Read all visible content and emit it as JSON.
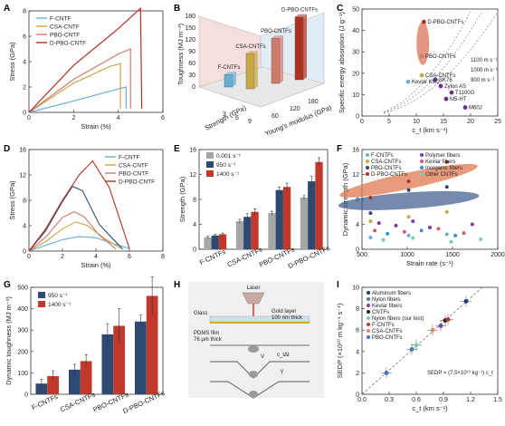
{
  "colors": {
    "f": "#6aaed6",
    "csa": "#c9a84a",
    "pbo": "#d07a6a",
    "dpbo": "#b03020",
    "navy": "#2e4a73",
    "gray": "#a6a6a6",
    "red": "#c0392b"
  },
  "panel_letters": [
    "A",
    "B",
    "C",
    "D",
    "E",
    "F",
    "G",
    "H",
    "I"
  ],
  "chart_data": [
    {
      "id": "A",
      "type": "line",
      "xlabel": "Strain (%)",
      "ylabel": "Stress (GPa)",
      "xlim": [
        0,
        6
      ],
      "ylim": [
        0,
        8
      ],
      "xticks": [
        "0",
        "2",
        "4",
        "6"
      ],
      "yticks": [
        "0",
        "2",
        "4",
        "6",
        "8"
      ],
      "series": [
        {
          "name": "F-CNTF",
          "color": "#6aaed6",
          "x": [
            0,
            2,
            4,
            4.35,
            4.35
          ],
          "y": [
            0,
            0.9,
            1.85,
            2.0,
            0.3
          ]
        },
        {
          "name": "CSA-CNTF",
          "color": "#c9a84a",
          "x": [
            0,
            2,
            3.6,
            4.1,
            4.1
          ],
          "y": [
            0,
            2.3,
            3.6,
            3.85,
            0.3
          ]
        },
        {
          "name": "PBO-CNTF",
          "color": "#d07a6a",
          "x": [
            0,
            2,
            4,
            4.55,
            4.55
          ],
          "y": [
            0,
            2.6,
            4.6,
            5.0,
            0.3
          ]
        },
        {
          "name": "D-PBO-CNTF",
          "color": "#b03020",
          "x": [
            0,
            2,
            4,
            5.0,
            5.05
          ],
          "y": [
            0,
            3.7,
            6.6,
            8.2,
            0.3
          ]
        }
      ]
    },
    {
      "id": "B",
      "type": "bar",
      "ylabel": "Toughness (MJ m⁻³)",
      "xlabel": "Strength (GPa)",
      "zlabel": "Young's modulus (GPa)",
      "zlim": [
        0,
        180
      ],
      "zticks": [
        "0",
        "30",
        "60",
        "90",
        "120",
        "150",
        "180"
      ],
      "strength_ticks": [
        "3",
        "6",
        "9"
      ],
      "modulus_ticks": [
        "60",
        "120",
        "180"
      ],
      "bars": [
        {
          "label": "F-CNTFs",
          "value": 32,
          "color": "#6aaed6"
        },
        {
          "label": "CSA-CNTFs",
          "value": 90,
          "color": "#c9a84a"
        },
        {
          "label": "PBO-CNTFs",
          "value": 115,
          "color": "#d07a6a"
        },
        {
          "label": "D-PBO-CNTFs",
          "value": 160,
          "color": "#b03020"
        }
      ]
    },
    {
      "id": "C",
      "type": "scatter",
      "xlabel": "c_t (km s⁻¹)",
      "ylabel": "Specific energy absorption (J g⁻¹)",
      "xlim": [
        0,
        25
      ],
      "ylim": [
        0,
        50
      ],
      "xticks": [
        "0",
        "5",
        "10",
        "15",
        "20",
        "25"
      ],
      "yticks": [
        "0",
        "10",
        "20",
        "30",
        "40",
        "50"
      ],
      "contours": [
        "1100 m s⁻¹",
        "1000 m s⁻¹",
        "900 m s⁻¹"
      ],
      "points": [
        {
          "label": "D-PBO-CNTFs",
          "x": 11.4,
          "y": 44,
          "color": "#b03020"
        },
        {
          "label": "PBO-CNTFs",
          "x": 11.0,
          "y": 28,
          "color": "#d07a6a"
        },
        {
          "label": "CSA-CNTFs",
          "x": 11.0,
          "y": 19,
          "color": "#c9a84a"
        },
        {
          "label": "Kevlar KM2",
          "x": 8.5,
          "y": 16,
          "color": "#6aaed6"
        },
        {
          "label": "SK76",
          "x": 13.5,
          "y": 17,
          "color": "#6b2d8f"
        },
        {
          "label": "Zylon AS",
          "x": 14.5,
          "y": 14,
          "color": "#6b2d8f"
        },
        {
          "label": "T1100G",
          "x": 16.5,
          "y": 11,
          "color": "#6b2d8f"
        },
        {
          "label": "M5-HT",
          "x": 15.5,
          "y": 8,
          "color": "#6b2d8f"
        },
        {
          "label": "M60J",
          "x": 19,
          "y": 4,
          "color": "#6b2d8f"
        }
      ]
    },
    {
      "id": "D",
      "type": "line",
      "xlabel": "Strain (%)",
      "ylabel": "Stress (GPa)",
      "xlim": [
        0,
        8
      ],
      "ylim": [
        0,
        16
      ],
      "xticks": [
        "0",
        "2",
        "4",
        "6",
        "8"
      ],
      "yticks": [
        "0",
        "4",
        "8",
        "12",
        "16"
      ],
      "series": [
        {
          "name": "F-CNTF",
          "color": "#6aaed6",
          "x": [
            0,
            1,
            2,
            3,
            4,
            5,
            6
          ],
          "y": [
            0,
            0.9,
            1.8,
            2.3,
            2.1,
            1.2,
            0.4
          ]
        },
        {
          "name": "CSA-CNTF",
          "color": "#c9a84a",
          "x": [
            0,
            1,
            2,
            2.8,
            3.5,
            4.5,
            5.5
          ],
          "y": [
            0,
            1.5,
            3.5,
            4.6,
            4.0,
            2.0,
            0.4
          ]
        },
        {
          "name": "PBO-CNTF",
          "color": "#d07a6a",
          "x": [
            0,
            1,
            2,
            2.7,
            3.3,
            4.2,
            5.2
          ],
          "y": [
            0,
            2.2,
            5.3,
            6.2,
            5.4,
            2.5,
            0.3
          ]
        },
        {
          "name": "D-PBO-CNTF",
          "color": "#2e4a73",
          "x": [
            0,
            1,
            2,
            2.6,
            3.2,
            4.2,
            5.6
          ],
          "y": [
            0,
            3.2,
            7.8,
            10.2,
            9.5,
            4.2,
            0.3
          ]
        },
        {
          "name": "D-PBO-CNTF",
          "color": "#b03020",
          "x": [
            0,
            1,
            2,
            3,
            3.8,
            4.8,
            6.0
          ],
          "y": [
            0,
            3.5,
            8.0,
            12.0,
            14.2,
            10.0,
            0.4
          ]
        }
      ]
    },
    {
      "id": "E",
      "type": "bar",
      "ylabel": "Strength (GPa)",
      "ylim": [
        0,
        16
      ],
      "yticks": [
        "0",
        "4",
        "8",
        "12",
        "16"
      ],
      "categories": [
        "F-CNTFs",
        "CSA-CNTFs",
        "PBO-CNTFs",
        "D-PBO-CNTFs"
      ],
      "series": [
        {
          "name": "0.001 s⁻¹",
          "color": "#a6a6a6",
          "values": [
            1.9,
            4.5,
            5.8,
            8.3
          ],
          "err": [
            0.2,
            0.3,
            0.3,
            0.3
          ]
        },
        {
          "name": "950 s⁻¹",
          "color": "#2e4a73",
          "values": [
            2.2,
            5.2,
            9.5,
            10.9
          ],
          "err": [
            0.2,
            0.5,
            0.5,
            0.8
          ]
        },
        {
          "name": "1400 s⁻¹",
          "color": "#c0392b",
          "values": [
            2.4,
            6.0,
            10.0,
            14.0
          ],
          "err": [
            0.2,
            0.5,
            0.6,
            0.7
          ]
        }
      ]
    },
    {
      "id": "F",
      "type": "scatter",
      "xlabel": "Strain rate (s⁻¹)",
      "ylabel": "Dynamic strength (GPa)",
      "xlim": [
        400,
        2000
      ],
      "ylim": [
        0,
        16
      ],
      "xticks": [
        "500",
        "1000",
        "1500",
        "2000"
      ],
      "yticks": [
        "0",
        "4",
        "8",
        "12",
        "16"
      ],
      "legend_left": [
        "F-CNTFs",
        "CSA-CNTFs",
        "PBO-CNTFs",
        "D-PBO-CNTFs"
      ],
      "legend_right": [
        "Polymer fibers",
        "Kevlar fibers",
        "Inorganic fibers",
        "Other CNTFs"
      ],
      "series": [
        {
          "name": "D-PBO-CNTFs",
          "color": "#b03020",
          "x": [
            500,
            950,
            1400
          ],
          "y": [
            8.3,
            10.9,
            14.0
          ]
        },
        {
          "name": "PBO-CNTFs",
          "color": "#2e4a73",
          "x": [
            500,
            950,
            1400
          ],
          "y": [
            5.8,
            9.5,
            10.0
          ]
        },
        {
          "name": "CSA-CNTFs",
          "color": "#c9a84a",
          "x": [
            500,
            950,
            1400
          ],
          "y": [
            4.5,
            5.2,
            6.0
          ]
        },
        {
          "name": "F-CNTFs",
          "color": "#6aaed6",
          "x": [
            500,
            950,
            1400
          ],
          "y": [
            1.9,
            2.2,
            2.4
          ]
        },
        {
          "name": "Polymer fibers",
          "color": "#7b3fa0",
          "x": [
            600,
            800,
            1000,
            1200,
            1700
          ],
          "y": [
            4.2,
            3.8,
            4.5,
            3.5,
            4.0
          ]
        },
        {
          "name": "Kevlar fibers",
          "color": "#c85a8a",
          "x": [
            550,
            900,
            1300,
            1600
          ],
          "y": [
            3.0,
            2.8,
            3.3,
            2.6
          ]
        },
        {
          "name": "Inorganic fibers",
          "color": "#3a8fd0",
          "x": [
            700,
            1100,
            1500
          ],
          "y": [
            2.5,
            3.0,
            2.2
          ]
        },
        {
          "name": "Other CNTFs",
          "color": "#7fc8c0",
          "x": [
            650,
            1000,
            1450,
            1800
          ],
          "y": [
            1.5,
            1.8,
            1.2,
            1.6
          ]
        }
      ]
    },
    {
      "id": "G",
      "type": "bar",
      "ylabel": "Dynamic toughness (MJ m⁻³)",
      "ylim": [
        0,
        500
      ],
      "yticks": [
        "0",
        "100",
        "200",
        "300",
        "400",
        "500"
      ],
      "categories": [
        "F-CNTFs",
        "CSA-CNTFs",
        "PBO-CNTFs",
        "D-PBO-CNTFs"
      ],
      "series": [
        {
          "name": "950 s⁻¹",
          "color": "#2e4a73",
          "values": [
            50,
            115,
            280,
            340
          ],
          "err": [
            20,
            25,
            50,
            30
          ]
        },
        {
          "name": "1400 s⁻¹",
          "color": "#c0392b",
          "values": [
            85,
            155,
            320,
            460
          ],
          "err": [
            25,
            30,
            80,
            90
          ]
        }
      ]
    },
    {
      "id": "I",
      "type": "scatter",
      "xlabel": "c_t (km s⁻¹)",
      "ylabel": "SEDP (×10¹⁰ m kg⁻¹ s⁻¹)",
      "xlim": [
        0,
        1.5
      ],
      "ylim": [
        0,
        10
      ],
      "xticks": [
        "0.0",
        "0.3",
        "0.6",
        "0.9",
        "1.2",
        "1.5"
      ],
      "yticks": [
        "0",
        "2",
        "4",
        "6",
        "8",
        "10"
      ],
      "legend": [
        "Aluminum fibers",
        "Nylon fibers",
        "Kevlar fibers",
        "CNTFs",
        "Nylon fibers (our test)",
        "F-CNTFs",
        "CSA-CNTFs",
        "PBO-CNTFs"
      ],
      "annotation": "SEDP = (7.5×10¹⁰ kg⁻¹) c_t",
      "points": [
        {
          "name": "Aluminum fibers",
          "color": "#1f3a6a",
          "x": 1.15,
          "y": 8.7
        },
        {
          "name": "Nylon fibers",
          "color": "#4a7fa0",
          "x": 0.55,
          "y": 4.2
        },
        {
          "name": "Kevlar fibers",
          "color": "#7b3fa0",
          "x": 0.87,
          "y": 6.4
        },
        {
          "name": "CNTFs",
          "color": "#222",
          "x": 0.92,
          "y": 6.9
        },
        {
          "name": "Nylon fibers (our test)",
          "color": "#7fc8c0",
          "x": 0.6,
          "y": 4.6
        },
        {
          "name": "F-CNTFs",
          "color": "#c0392b",
          "x": 0.95,
          "y": 7.0
        },
        {
          "name": "CSA-CNTFs",
          "color": "#e08a6a",
          "x": 0.78,
          "y": 6.0
        },
        {
          "name": "PBO-CNTFs",
          "color": "#3a6fd0",
          "x": 0.27,
          "y": 2.0
        }
      ]
    }
  ],
  "panel_h": {
    "laser": "Laser",
    "glass": "Glass",
    "gold": "Gold layer",
    "gold_thick": "100 nm thick",
    "pdms": "PDMS film",
    "pdms_thick": "76 μm thick",
    "v": "V",
    "c_dt": "c_tΔt",
    "gamma": "γ"
  }
}
